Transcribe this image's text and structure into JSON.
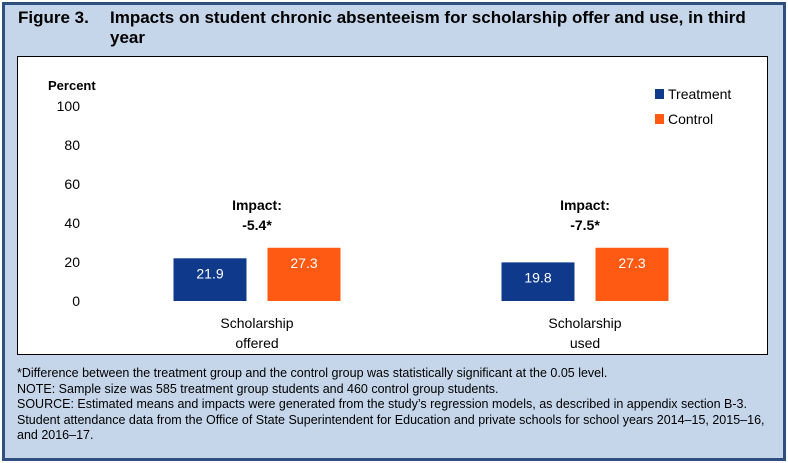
{
  "figure_label": "Figure 3.",
  "title": "Impacts on student chronic absenteeism for scholarship offer and use, in third year",
  "notes": [
    "*Difference between the treatment group and the control group was statistically significant at the 0.05 level.",
    "NOTE: Sample size was 585 treatment group students and 460 control group students.",
    "SOURCE: Estimated means and impacts were generated from the study’s regression models, as described in appendix section B-3. Student attendance data from the Office of State Superintendent for Education and private schools for school years 2014–15, 2015–16, and 2016–17."
  ],
  "chart_data": {
    "type": "bar",
    "ylabel": "Percent",
    "ylim": [
      0,
      100
    ],
    "yticks": [
      0,
      20,
      40,
      60,
      80,
      100
    ],
    "grid": false,
    "legend_position": "top-right",
    "categories": [
      [
        "Scholarship",
        "offered"
      ],
      [
        "Scholarship",
        "used"
      ]
    ],
    "series": [
      {
        "name": "Treatment",
        "color": "#0f3a8c",
        "values": [
          21.9,
          19.8
        ]
      },
      {
        "name": "Control",
        "color": "#ff5a14",
        "values": [
          27.3,
          27.3
        ]
      }
    ],
    "annotations": [
      {
        "label": "Impact:",
        "value": "-5.4*"
      },
      {
        "label": "Impact:",
        "value": "-7.5*"
      }
    ]
  }
}
